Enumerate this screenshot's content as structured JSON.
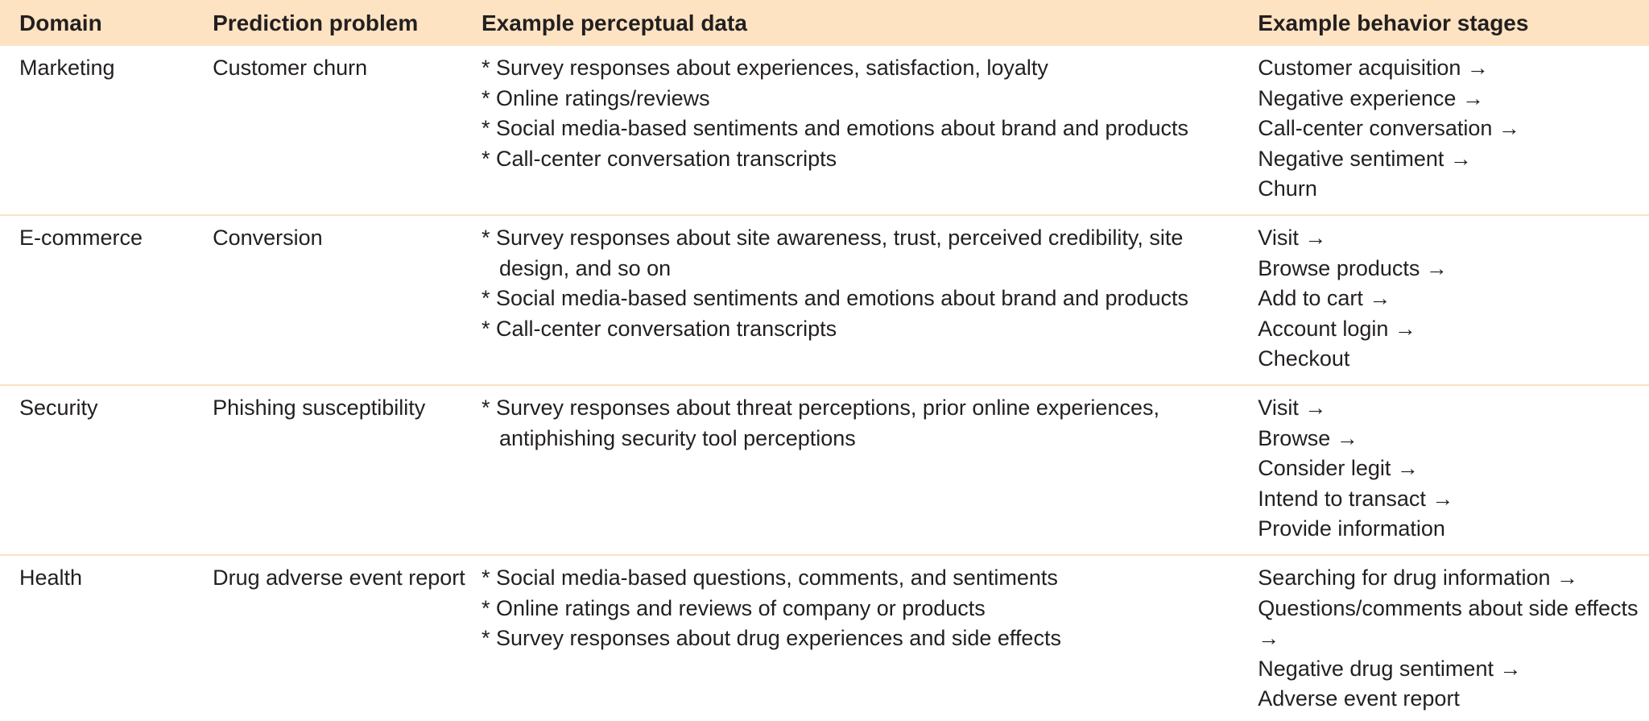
{
  "table": {
    "header": [
      "Domain",
      "Prediction problem",
      "Example perceptual data",
      "Example behavior stages"
    ],
    "rows": [
      {
        "domain": "Marketing",
        "problem": "Customer churn",
        "perceptual": [
          "* Survey responses about experiences, satisfaction, loyalty",
          "* Online ratings/reviews",
          "* Social media-based sentiments and emotions about brand and products",
          "* Call-center conversation transcripts"
        ],
        "stages": [
          "Customer acquisition →",
          "Negative experience →",
          "Call-center conversation →",
          "Negative sentiment →",
          "Churn"
        ]
      },
      {
        "domain": "E-commerce",
        "problem": "Conversion",
        "perceptual": [
          "* Survey responses about site awareness, trust, perceived credibility, site design, and so on",
          "* Social media-based sentiments and emotions about brand and products",
          "* Call-center conversation transcripts"
        ],
        "stages": [
          "Visit →",
          "Browse products →",
          "Add to cart →",
          "Account login →",
          "Checkout"
        ]
      },
      {
        "domain": "Security",
        "problem": "Phishing susceptibility",
        "perceptual": [
          "* Survey responses about threat perceptions, prior online experiences, antiphishing security tool perceptions"
        ],
        "stages": [
          "Visit →",
          "Browse →",
          "Consider legit →",
          "Intend to transact →",
          "Provide information"
        ]
      },
      {
        "domain": "Health",
        "problem": "Drug adverse event report",
        "perceptual": [
          "* Social media-based questions, comments, and sentiments",
          "* Online ratings and reviews of company or products",
          "* Survey responses about drug experiences and side effects"
        ],
        "stages": [
          "Searching for drug information →",
          "Questions/comments about side effects →",
          "Negative drug sentiment →",
          "Adverse event report"
        ]
      }
    ]
  }
}
